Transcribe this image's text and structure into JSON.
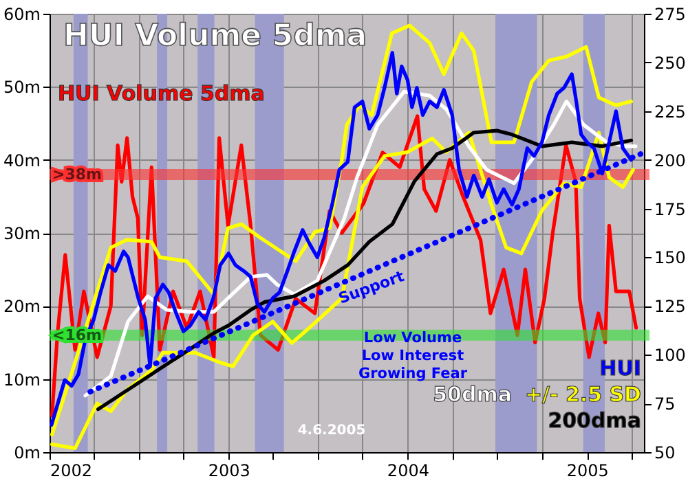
{
  "chart_data": {
    "type": "line",
    "title": "HUI Volume 5dma",
    "xlim": [
      "2002-01-01",
      "2005-04-27"
    ],
    "xticks": [
      {
        "value": "2002-01-01",
        "label": "2002"
      },
      {
        "value": "2002-04-01",
        "label": null
      },
      {
        "value": "2002-07-01",
        "label": null
      },
      {
        "value": "2002-10-01",
        "label": null
      },
      {
        "value": "2003-01-01",
        "label": "2003"
      },
      {
        "value": "2003-04-01",
        "label": null
      },
      {
        "value": "2003-07-01",
        "label": null
      },
      {
        "value": "2003-10-01",
        "label": null
      },
      {
        "value": "2004-01-01",
        "label": "2004"
      },
      {
        "value": "2004-04-01",
        "label": null
      },
      {
        "value": "2004-07-01",
        "label": null
      },
      {
        "value": "2004-10-01",
        "label": null
      },
      {
        "value": "2005-01-01",
        "label": "2005"
      },
      {
        "value": "2005-04-01",
        "label": null
      }
    ],
    "ylim": [
      0,
      60
    ],
    "yticks": [
      {
        "value": 0,
        "label": "0m"
      },
      {
        "value": 10,
        "label": "10m"
      },
      {
        "value": 20,
        "label": "20m"
      },
      {
        "value": 30,
        "label": "30m"
      },
      {
        "value": 40,
        "label": "40m"
      },
      {
        "value": 50,
        "label": "50m"
      },
      {
        "value": 60,
        "label": "60m"
      }
    ],
    "y2lim": [
      50,
      275
    ],
    "y2ticks": [
      50,
      75,
      100,
      125,
      150,
      175,
      200,
      225,
      250,
      275
    ],
    "grid": true,
    "legend": "bottom right",
    "series": [
      {
        "name": "HUI Volume 5dma",
        "color": "#ff0000",
        "x": [
          "2002-01-06",
          "2002-01-17",
          "2002-02-02",
          "2002-02-22",
          "2002-03-12",
          "2002-04-08",
          "2002-05-06",
          "2002-05-20",
          "2002-05-28",
          "2002-06-08",
          "2002-06-19",
          "2002-06-30",
          "2002-07-09",
          "2002-07-28",
          "2002-08-14",
          "2002-09-10",
          "2002-10-08",
          "2002-11-04",
          "2002-12-02",
          "2002-12-13",
          "2002-12-31",
          "2003-01-27",
          "2003-02-15",
          "2003-03-07",
          "2003-04-12",
          "2003-05-18",
          "2003-06-26",
          "2003-07-26",
          "2003-08-20",
          "2003-10-03",
          "2003-11-11",
          "2003-12-16",
          "2004-01-21",
          "2004-02-04",
          "2004-02-28",
          "2004-03-27",
          "2004-04-23",
          "2004-05-29",
          "2004-06-18",
          "2004-07-15",
          "2004-08-12",
          "2004-08-28",
          "2004-09-17",
          "2004-10-06",
          "2004-10-23",
          "2004-11-19",
          "2004-12-09",
          "2004-12-17",
          "2005-01-05",
          "2005-01-24",
          "2005-02-07",
          "2005-02-15",
          "2005-03-01",
          "2005-03-28",
          "2005-04-11"
        ],
        "values": [
          5,
          16,
          27,
          14,
          22,
          13,
          20,
          42,
          37,
          43,
          35,
          32,
          16,
          39,
          14,
          22,
          17,
          22,
          13,
          43,
          31,
          42,
          31,
          16,
          14,
          21,
          19,
          33,
          30,
          34,
          41,
          39,
          46,
          36,
          33,
          40,
          35,
          29,
          19,
          25,
          16,
          25,
          15,
          21,
          30,
          42,
          37,
          21,
          13,
          19,
          15,
          31,
          22,
          22,
          17
        ]
      },
      {
        "name": "+/- 2.5 SD",
        "color": "#ffff00",
        "axis": "y2",
        "x": [
          "2002-01-06",
          "2002-02-22",
          "2002-05-06",
          "2002-06-08",
          "2002-07-28",
          "2002-08-14",
          "2002-10-08",
          "2002-12-02",
          "2002-12-31",
          "2003-01-27",
          "2003-03-07",
          "2003-05-18",
          "2003-06-26",
          "2003-07-26",
          "2003-08-20",
          "2003-08-30",
          "2003-09-25",
          "2003-10-20",
          "2003-11-30",
          "2004-01-05",
          "2004-02-15",
          "2004-03-15",
          "2004-04-20",
          "2004-05-15",
          "2004-06-20",
          "2004-08-05",
          "2004-09-10",
          "2004-10-15",
          "2004-11-20",
          "2004-12-30",
          "2005-01-25",
          "2005-03-01",
          "2005-04-01"
        ],
        "values": [
          59,
          96,
          155,
          159,
          158,
          150,
          148,
          131,
          165,
          167,
          160,
          148,
          163,
          165,
          200,
          218,
          228,
          223,
          265,
          269,
          260,
          244,
          265,
          256,
          209,
          209,
          240,
          251,
          253,
          258,
          232,
          228,
          230
        ]
      },
      {
        "color": "#ffff00",
        "axis": "y2",
        "x": [
          "2002-01-06",
          "2002-02-22",
          "2002-04-08",
          "2002-05-06",
          "2002-06-08",
          "2002-07-28",
          "2002-08-20",
          "2002-10-25",
          "2002-12-15",
          "2003-01-10",
          "2003-02-20",
          "2003-04-01",
          "2003-05-10",
          "2003-06-20",
          "2003-08-20",
          "2003-10-01",
          "2003-11-15",
          "2004-01-01",
          "2004-02-20",
          "2004-03-20",
          "2004-05-05",
          "2004-06-20",
          "2004-07-20",
          "2004-08-20",
          "2004-10-01",
          "2004-11-15",
          "2004-12-20",
          "2005-01-25",
          "2005-02-15",
          "2005-03-15",
          "2005-04-05"
        ],
        "values": [
          54,
          52,
          75,
          71,
          82,
          92,
          101,
          101,
          96,
          94,
          110,
          117,
          106,
          115,
          129,
          186,
          202,
          204,
          211,
          204,
          214,
          177,
          155,
          152,
          174,
          188,
          186,
          214,
          191,
          186,
          195
        ]
      },
      {
        "name": "50dma",
        "color": "#ffffff",
        "axis": "y2",
        "x": [
          "2002-03-15",
          "2002-05-06",
          "2002-06-10",
          "2002-07-20",
          "2002-08-28",
          "2002-10-15",
          "2002-12-02",
          "2002-12-31",
          "2003-02-15",
          "2003-03-20",
          "2003-04-10",
          "2003-05-15",
          "2003-07-01",
          "2003-08-25",
          "2003-09-20",
          "2003-11-01",
          "2003-12-25",
          "2004-02-15",
          "2004-03-20",
          "2004-05-05",
          "2004-06-10",
          "2004-08-05",
          "2004-09-10",
          "2004-10-25",
          "2004-11-20",
          "2004-12-25",
          "2005-02-10",
          "2005-03-20",
          "2005-04-10"
        ],
        "values": [
          79,
          89,
          117,
          130,
          123,
          122,
          122,
          129,
          140,
          141,
          136,
          131,
          138,
          170,
          191,
          218,
          235,
          233,
          226,
          207,
          195,
          188,
          200,
          218,
          230,
          218,
          209,
          207,
          207
        ]
      },
      {
        "name": "200dma",
        "color": "#000000",
        "axis": "y2",
        "x": [
          "2002-04-10",
          "2002-07-10",
          "2002-10-15",
          "2002-12-01",
          "2003-01-01",
          "2003-02-15",
          "2003-03-15",
          "2003-05-15",
          "2003-07-15",
          "2003-09-01",
          "2003-10-15",
          "2003-12-01",
          "2004-01-15",
          "2004-03-01",
          "2004-04-01",
          "2004-05-15",
          "2004-07-01",
          "2004-08-01",
          "2004-10-01",
          "2004-12-01",
          "2005-02-01",
          "2005-04-01"
        ],
        "values": [
          72,
          87,
          103,
          111,
          115,
          123,
          127,
          130,
          138,
          146,
          158,
          167,
          189,
          203,
          206,
          214,
          215,
          213,
          207,
          209,
          207,
          210
        ]
      },
      {
        "name": "HUI",
        "color": "#0000ff",
        "axis": "y2",
        "x": [
          "2002-01-05",
          "2002-02-01",
          "2002-02-15",
          "2002-03-01",
          "2002-03-15",
          "2002-04-01",
          "2002-04-15",
          "2002-05-01",
          "2002-05-15",
          "2002-06-01",
          "2002-06-10",
          "2002-06-20",
          "2002-07-01",
          "2002-07-15",
          "2002-07-25",
          "2002-08-05",
          "2002-08-20",
          "2002-09-01",
          "2002-09-15",
          "2002-10-01",
          "2002-10-15",
          "2002-11-01",
          "2002-11-15",
          "2002-12-01",
          "2002-12-15",
          "2003-01-01",
          "2003-01-15",
          "2003-02-01",
          "2003-02-15",
          "2003-03-01",
          "2003-03-15",
          "2003-04-01",
          "2003-04-15",
          "2003-05-01",
          "2003-05-15",
          "2003-06-01",
          "2003-06-15",
          "2003-07-01",
          "2003-07-15",
          "2003-08-01",
          "2003-08-15",
          "2003-09-01",
          "2003-09-15",
          "2003-10-01",
          "2003-10-15",
          "2003-11-01",
          "2003-11-15",
          "2003-12-01",
          "2003-12-10",
          "2003-12-20",
          "2004-01-01",
          "2004-01-10",
          "2004-01-20",
          "2004-02-01",
          "2004-02-15",
          "2004-03-01",
          "2004-03-15",
          "2004-04-01",
          "2004-04-15",
          "2004-05-01",
          "2004-05-15",
          "2004-06-01",
          "2004-06-15",
          "2004-07-01",
          "2004-07-15",
          "2004-08-01",
          "2004-08-15",
          "2004-09-01",
          "2004-09-15",
          "2004-10-01",
          "2004-10-15",
          "2004-11-01",
          "2004-11-15",
          "2004-12-01",
          "2004-12-10",
          "2004-12-20",
          "2005-01-01",
          "2005-01-15",
          "2005-02-01",
          "2005-02-15",
          "2005-03-01",
          "2005-03-15",
          "2005-04-01"
        ],
        "values": [
          64,
          87,
          84,
          90,
          108,
          118,
          132,
          146,
          143,
          153,
          150,
          140,
          129,
          118,
          94,
          129,
          136,
          132,
          122,
          112,
          115,
          122,
          118,
          129,
          146,
          152,
          146,
          143,
          140,
          126,
          122,
          129,
          132,
          143,
          153,
          164,
          157,
          150,
          160,
          178,
          195,
          199,
          227,
          230,
          216,
          223,
          237,
          255,
          234,
          248,
          241,
          227,
          237,
          223,
          230,
          227,
          236,
          223,
          195,
          181,
          192,
          181,
          190,
          178,
          185,
          177,
          185,
          206,
          202,
          209,
          223,
          234,
          237,
          244,
          230,
          213,
          209,
          206,
          193,
          209,
          225,
          206,
          200
        ]
      },
      {
        "type": "line",
        "line_style": "dotted",
        "color": "#0000ff",
        "axis": "y2",
        "x": [
          "2002-03-25",
          "2005-04-20"
        ],
        "values": [
          81,
          203
        ]
      }
    ],
    "bands": [
      {
        "axis": "x",
        "from": "2002-02-19",
        "to": "2002-03-20",
        "color": "#9c9ccc"
      },
      {
        "axis": "x",
        "from": "2002-08-08",
        "to": "2002-08-29",
        "color": "#9c9ccc"
      },
      {
        "axis": "x",
        "from": "2002-10-30",
        "to": "2002-12-03",
        "color": "#9c9ccc"
      },
      {
        "axis": "x",
        "from": "2003-02-24",
        "to": "2003-04-24",
        "color": "#9c9ccc"
      },
      {
        "axis": "x",
        "from": "2004-06-28",
        "to": "2004-09-21",
        "color": "#9c9ccc"
      },
      {
        "axis": "x",
        "from": "2004-12-24",
        "to": "2005-02-06",
        "color": "#9c9ccc"
      }
    ],
    "ref_lines": [
      {
        "axis": "y",
        "value": 38,
        "label": ">38m",
        "color": "#ff3030"
      },
      {
        "axis": "y",
        "value": 16,
        "label": "<16m",
        "color": "#30e030"
      }
    ],
    "annotations": [
      "Low Volume\nLow Interest\nGrowing Fear",
      "4.6.2005",
      "Support"
    ]
  }
}
